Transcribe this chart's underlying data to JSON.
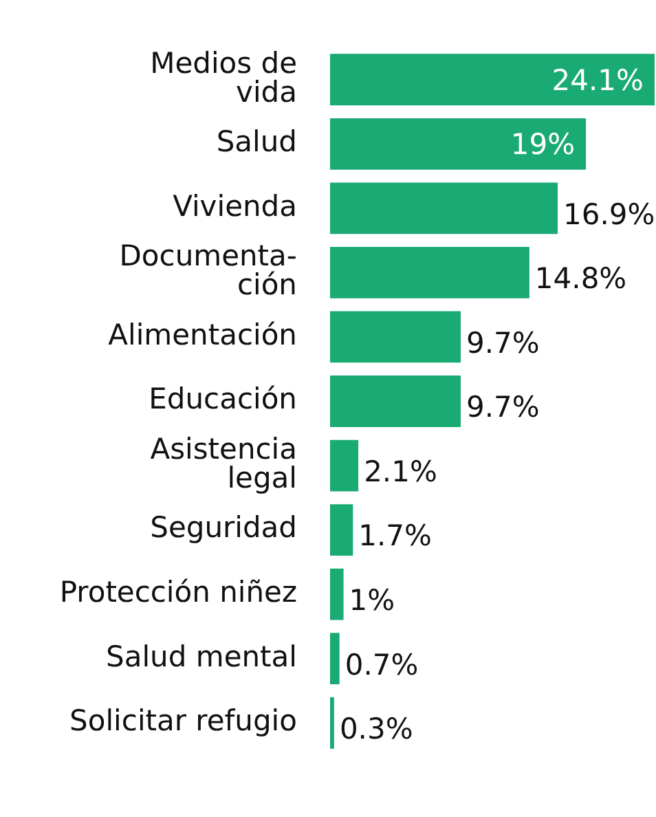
{
  "chart_data": {
    "type": "bar",
    "orientation": "horizontal",
    "categories": [
      "Medios de\nvida",
      "Salud",
      "Vivienda",
      "Documenta-\nción",
      "Alimentación",
      "Educación",
      "Asistencia\nlegal",
      "Seguridad",
      "Protección niñez",
      "Salud mental",
      "Solicitar refugio"
    ],
    "values": [
      24.1,
      19,
      16.9,
      14.8,
      9.7,
      9.7,
      2.1,
      1.7,
      1,
      0.7,
      0.3
    ],
    "value_labels": [
      "24.1%",
      "19%",
      "16.9%",
      "14.8%",
      "9.7%",
      "9.7%",
      "2.1%",
      "1.7%",
      "1%",
      "0.7%",
      "0.3%"
    ],
    "color": "#1aaa73",
    "xlim": [
      0,
      24.1
    ],
    "tick_labels": "y",
    "grid": false,
    "legend": false
  }
}
